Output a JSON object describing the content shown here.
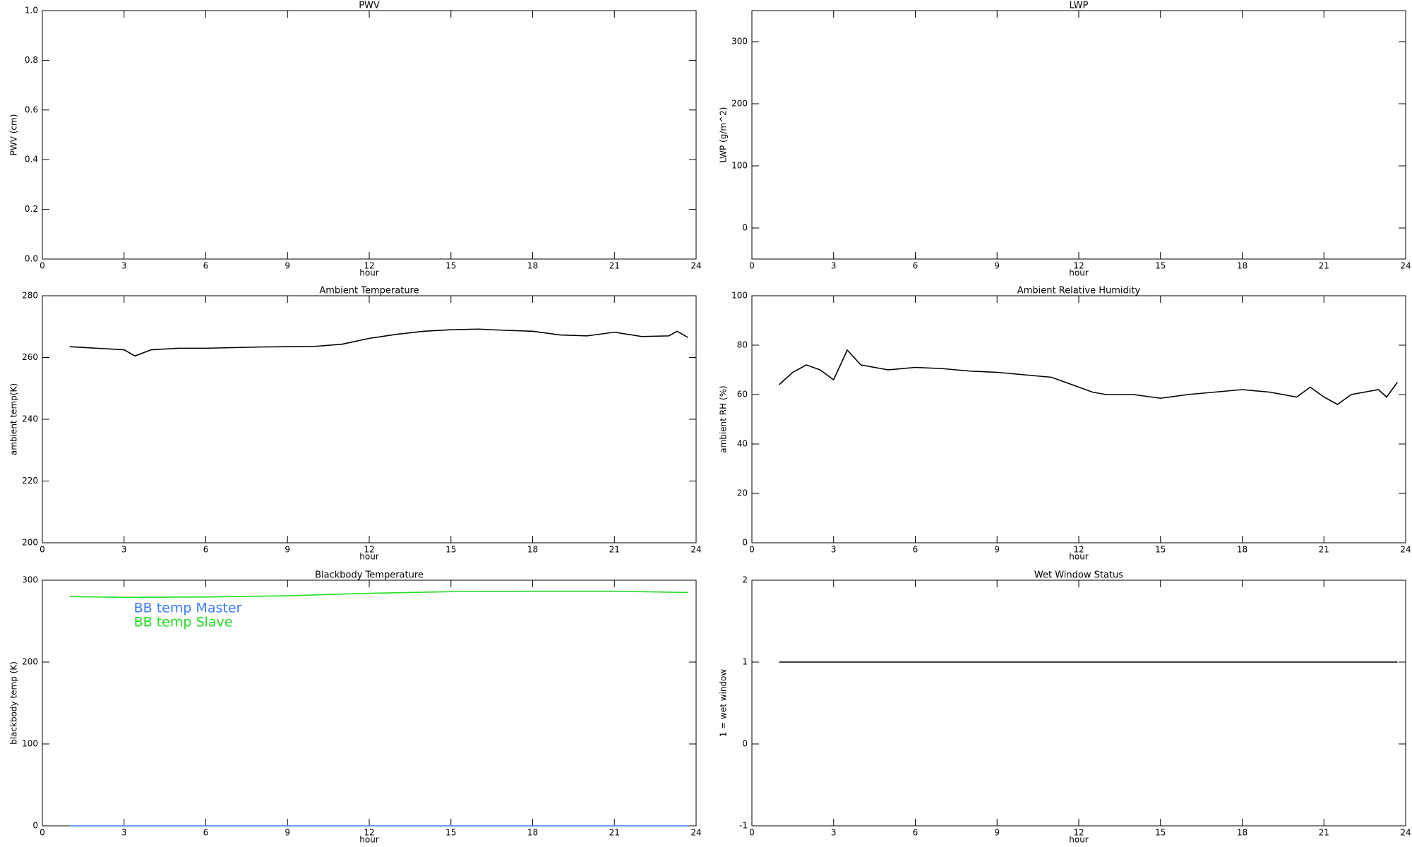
{
  "chart_data": [
    {
      "type": "line",
      "title": "PWV",
      "xlabel": "hour",
      "ylabel": "PWV (cm)",
      "xlim": [
        0,
        24
      ],
      "xticks": [
        0,
        3,
        6,
        9,
        12,
        15,
        18,
        21,
        24
      ],
      "ylim": [
        0,
        1
      ],
      "yticks": [
        {
          "value": 0,
          "label": "0.0"
        },
        0.2,
        0.4,
        0.6,
        0.8,
        {
          "value": 1,
          "label": "1.0"
        }
      ]
    },
    {
      "type": "line",
      "title": "LWP",
      "xlabel": "hour",
      "ylabel": "LWP (g/m^2)",
      "xlim": [
        0,
        24
      ],
      "xticks": [
        0,
        3,
        6,
        9,
        12,
        15,
        18,
        21,
        24
      ],
      "ylim": [
        -50,
        350
      ],
      "yticks": [
        0,
        100,
        200,
        300
      ]
    },
    {
      "type": "line",
      "title": "Ambient Temperature",
      "xlabel": "hour",
      "ylabel": "ambient temp(K)",
      "xlim": [
        0,
        24
      ],
      "xticks": [
        0,
        3,
        6,
        9,
        12,
        15,
        18,
        21,
        24
      ],
      "ylim": [
        200,
        280
      ],
      "yticks": [
        200,
        220,
        240,
        260,
        280
      ],
      "x": [
        1,
        2,
        3,
        3.4,
        4,
        5,
        6,
        7,
        8,
        9,
        10,
        11,
        12,
        13,
        14,
        15,
        16,
        17,
        18,
        19,
        20,
        21,
        22,
        23,
        23.3,
        23.7
      ],
      "series": [
        {
          "color": "#000000",
          "values": [
            263.5,
            263,
            262.5,
            260.5,
            262.5,
            263,
            263,
            263.2,
            263.4,
            263.5,
            263.6,
            264.3,
            266.2,
            267.5,
            268.5,
            269,
            269.2,
            268.8,
            268.5,
            267.3,
            267,
            268.2,
            266.8,
            267,
            268.5,
            266.5
          ]
        }
      ]
    },
    {
      "type": "line",
      "title": "Ambient Relative Humidity",
      "xlabel": "hour",
      "ylabel": "ambient RH (%)",
      "xlim": [
        0,
        24
      ],
      "xticks": [
        0,
        3,
        6,
        9,
        12,
        15,
        18,
        21,
        24
      ],
      "ylim": [
        0,
        100
      ],
      "yticks": [
        0,
        20,
        40,
        60,
        80,
        100
      ],
      "x": [
        1,
        1.5,
        2,
        2.5,
        3,
        3.5,
        4,
        5,
        6,
        7,
        8,
        9,
        10,
        11,
        12,
        12.5,
        13,
        14,
        15,
        16,
        17,
        18,
        19,
        20,
        20.5,
        21,
        21.5,
        22,
        23,
        23.3,
        23.7
      ],
      "series": [
        {
          "color": "#000000",
          "values": [
            64,
            69,
            72,
            70,
            66,
            78,
            72,
            70,
            71,
            70.5,
            69.5,
            69,
            68,
            67,
            63,
            61,
            60,
            60,
            58.5,
            60,
            61,
            62,
            61,
            59,
            63,
            59,
            56,
            60,
            62,
            59,
            65
          ]
        }
      ]
    },
    {
      "type": "line",
      "title": "Blackbody Temperature",
      "xlabel": "hour",
      "ylabel": "blackbody temp (K)",
      "xlim": [
        0,
        24
      ],
      "xticks": [
        0,
        3,
        6,
        9,
        12,
        15,
        18,
        21,
        24
      ],
      "ylim": [
        0,
        300
      ],
      "yticks": [
        0,
        100,
        200,
        300
      ],
      "legend": "upper left",
      "x": [
        1,
        3,
        6,
        9,
        12,
        15,
        18,
        21,
        23.7
      ],
      "series": [
        {
          "name": "BB temp Master",
          "color": "#3a7cff",
          "values": [
            0,
            0,
            0,
            0,
            0,
            0,
            0,
            0,
            0
          ]
        },
        {
          "name": "BB temp Slave",
          "color": "#22dd22",
          "values": [
            280,
            279,
            279.5,
            281,
            284,
            286,
            286.5,
            286.5,
            285
          ]
        }
      ]
    },
    {
      "type": "line",
      "title": "Wet Window Status",
      "xlabel": "hour",
      "ylabel": "1 = wet window",
      "xlim": [
        0,
        24
      ],
      "xticks": [
        0,
        3,
        6,
        9,
        12,
        15,
        18,
        21,
        24
      ],
      "ylim": [
        -1,
        2
      ],
      "yticks": [
        -1,
        0,
        1,
        2
      ],
      "x": [
        1,
        23.7
      ],
      "series": [
        {
          "color": "#000000",
          "values": [
            1,
            1
          ]
        }
      ]
    }
  ]
}
